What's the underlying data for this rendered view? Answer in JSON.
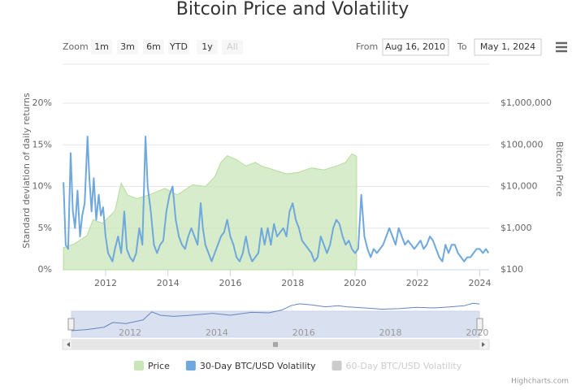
{
  "chart_data": {
    "type": "line",
    "title": "Bitcoin Price and Volatility",
    "range_selector": {
      "zoom_label": "Zoom",
      "buttons": [
        "1m",
        "3m",
        "6m",
        "YTD",
        "1y",
        "All"
      ],
      "from_label": "From",
      "from": "Aug 16, 2010",
      "to_label": "To",
      "to": "May 1, 2024"
    },
    "y_label": "Standard deviation of daily returns",
    "y2_label": "Bitcoin Price",
    "xlim": [
      2010.62,
      2024.3
    ],
    "xticks": [
      2012,
      2014,
      2016,
      2018,
      2020,
      2022,
      2024
    ],
    "ylim": [
      0,
      20
    ],
    "yticks": [
      {
        "value": 0,
        "label": "0%"
      },
      {
        "value": 5,
        "label": "5%"
      },
      {
        "value": 10,
        "label": "10%"
      },
      {
        "value": 15,
        "label": "15%"
      },
      {
        "value": 20,
        "label": "20%"
      }
    ],
    "y2lim": [
      100,
      1000000
    ],
    "y2_log": true,
    "y2ticks": [
      {
        "value": 100,
        "label": "$100"
      },
      {
        "value": 1000,
        "label": "$1,000"
      },
      {
        "value": 10000,
        "label": "$10,000"
      },
      {
        "value": 100000,
        "label": "$100,000"
      },
      {
        "value": 1000000,
        "label": "$1,000,000"
      }
    ],
    "grid": true,
    "series": [
      {
        "name": "Price",
        "type": "area",
        "axis": "y2",
        "color": "#c9e6b8",
        "x": [
          2010.65,
          2011.0,
          2011.4,
          2011.6,
          2011.9,
          2012.3,
          2012.5,
          2012.7,
          2013.0,
          2013.4,
          2013.9,
          2014.3,
          2014.8,
          2015.2,
          2015.5,
          2015.7,
          2015.9,
          2016.2,
          2016.5,
          2016.8,
          2017.0,
          2017.4,
          2017.8,
          2018.2,
          2018.6,
          2019.0,
          2019.4,
          2019.7,
          2019.9,
          2020.05
        ],
        "values": [
          340,
          420,
          660,
          1600,
          1300,
          2600,
          12000,
          6300,
          5100,
          6300,
          9000,
          6300,
          11000,
          10000,
          17000,
          38000,
          55000,
          44000,
          31000,
          38000,
          31000,
          25000,
          20000,
          22000,
          28000,
          25000,
          31000,
          38000,
          61000,
          53000
        ]
      },
      {
        "name": "30-Day BTC/USD Volatility",
        "type": "line",
        "color": "#6fa8dc",
        "x": [
          2010.65,
          2010.72,
          2010.8,
          2010.88,
          2010.95,
          2011.02,
          2011.1,
          2011.18,
          2011.25,
          2011.33,
          2011.42,
          2011.48,
          2011.55,
          2011.62,
          2011.7,
          2011.78,
          2011.85,
          2011.92,
          2012.0,
          2012.08,
          2012.15,
          2012.22,
          2012.3,
          2012.4,
          2012.5,
          2012.6,
          2012.68,
          2012.78,
          2012.88,
          2012.98,
          2013.08,
          2013.18,
          2013.28,
          2013.35,
          2013.45,
          2013.55,
          2013.65,
          2013.75,
          2013.85,
          2013.95,
          2014.05,
          2014.15,
          2014.25,
          2014.35,
          2014.45,
          2014.55,
          2014.65,
          2014.75,
          2014.85,
          2014.95,
          2015.05,
          2015.12,
          2015.2,
          2015.3,
          2015.4,
          2015.5,
          2015.6,
          2015.7,
          2015.8,
          2015.9,
          2016.0,
          2016.1,
          2016.2,
          2016.3,
          2016.4,
          2016.5,
          2016.6,
          2016.7,
          2016.8,
          2016.9,
          2017.0,
          2017.1,
          2017.2,
          2017.3,
          2017.4,
          2017.5,
          2017.6,
          2017.7,
          2017.8,
          2017.9,
          2018.0,
          2018.1,
          2018.2,
          2018.3,
          2018.4,
          2018.5,
          2018.6,
          2018.7,
          2018.8,
          2018.9,
          2019.0,
          2019.1,
          2019.2,
          2019.3,
          2019.4,
          2019.5,
          2019.6,
          2019.7,
          2019.8,
          2019.9,
          2020.0,
          2020.1,
          2020.2,
          2020.3,
          2020.4,
          2020.5,
          2020.6,
          2020.7,
          2020.8,
          2020.9,
          2021.0,
          2021.1,
          2021.2,
          2021.3,
          2021.4,
          2021.5,
          2021.6,
          2021.7,
          2021.8,
          2021.9,
          2022.0,
          2022.1,
          2022.2,
          2022.3,
          2022.4,
          2022.5,
          2022.6,
          2022.7,
          2022.8,
          2022.9,
          2023.0,
          2023.1,
          2023.2,
          2023.3,
          2023.4,
          2023.5,
          2023.6,
          2023.7,
          2023.8,
          2023.9,
          2024.0,
          2024.1,
          2024.2,
          2024.28
        ],
        "values": [
          10.5,
          3,
          2.5,
          14,
          7,
          5,
          9.5,
          4,
          6.5,
          8,
          16,
          11,
          7,
          11,
          6,
          9,
          6.5,
          7.5,
          4,
          2,
          1.5,
          1,
          2.5,
          4,
          2,
          7,
          2.5,
          1.5,
          1,
          2,
          5,
          3,
          16,
          10,
          7,
          3,
          2,
          3,
          3.5,
          7,
          9,
          10,
          6,
          4,
          3,
          2.5,
          4,
          5,
          4,
          3,
          8,
          5,
          3,
          2,
          1,
          2,
          3,
          4,
          4.5,
          6,
          4,
          3,
          1.5,
          1,
          2,
          4,
          2,
          1,
          1.5,
          2,
          5,
          3,
          5,
          3,
          5.5,
          4,
          4.5,
          5,
          4,
          7,
          8,
          6,
          5,
          3.5,
          3,
          2.5,
          2,
          1,
          1.5,
          4,
          3,
          2,
          3,
          5,
          6,
          5.5,
          4,
          3,
          3.5,
          2.5,
          2,
          2.5,
          9,
          4,
          2.5,
          1.5,
          2.5,
          2,
          2.5,
          3,
          4,
          5,
          4,
          3,
          5,
          4,
          3,
          3.5,
          3,
          2.5,
          3,
          3.5,
          2.5,
          3,
          4,
          3.5,
          2.5,
          1.5,
          1,
          3,
          2,
          3,
          3,
          2,
          1.5,
          1,
          1.5,
          1.5,
          2,
          2.5,
          2.5,
          2,
          2.5,
          2
        ]
      },
      {
        "name": "60-Day BTC/USD Volatility",
        "type": "line",
        "color": "#cccccc",
        "visible": false
      }
    ],
    "legend": "bottom",
    "credits": "Highcharts.com"
  }
}
